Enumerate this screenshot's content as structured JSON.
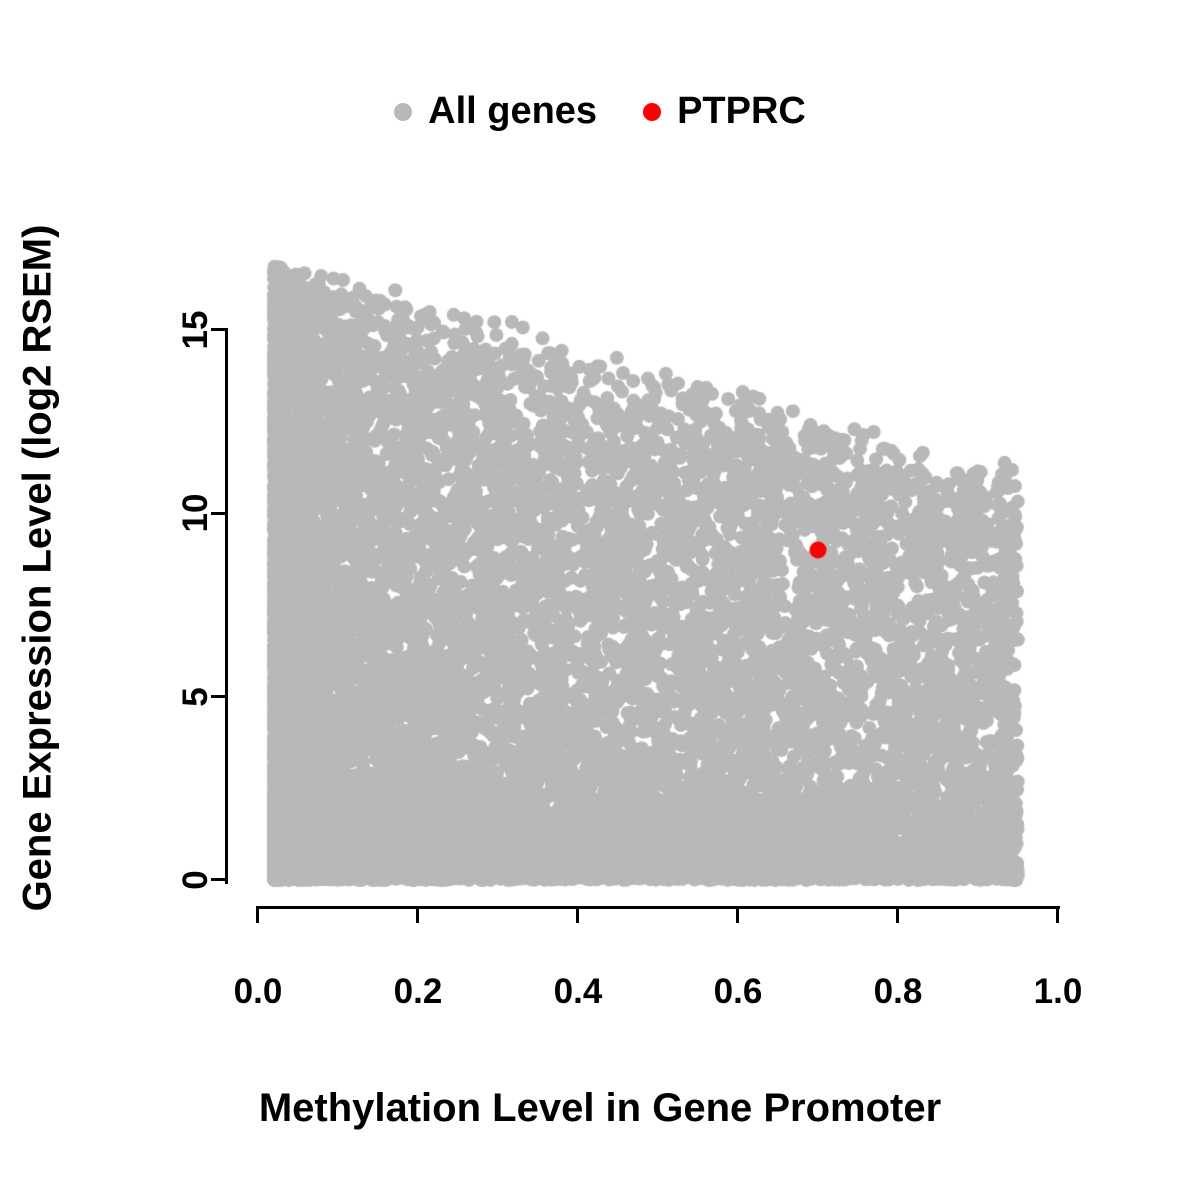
{
  "chart_data": {
    "type": "scatter",
    "title": "",
    "xlabel": "Methylation Level in Gene Promoter",
    "ylabel": "Gene Expression Level (log2 RSEM)",
    "xlim": [
      0.0,
      1.0
    ],
    "ylim": [
      0,
      17.5
    ],
    "grid": false,
    "legend_position": "top-center",
    "x_ticks": {
      "values": [
        0.0,
        0.2,
        0.4,
        0.6,
        0.8,
        1.0
      ],
      "labels": [
        "0.0",
        "0.2",
        "0.4",
        "0.6",
        "0.8",
        "1.0"
      ]
    },
    "y_ticks": {
      "values": [
        0,
        5,
        10,
        15
      ],
      "labels": [
        "0",
        "5",
        "10",
        "15"
      ]
    },
    "legend": [
      {
        "label": "All genes",
        "color": "#b8b8b8",
        "marker": "dot"
      },
      {
        "label": "PTPRC",
        "color": "#ff0000",
        "marker": "dot"
      }
    ],
    "series": [
      {
        "name": "All genes",
        "type": "point-cloud",
        "color": "#b8b8b8",
        "n_points": 14000,
        "seed": 42,
        "x_range": [
          0.02,
          0.95
        ],
        "upper_bound": {
          "y_at_x0": 17.2,
          "y_at_x1": 11.0
        },
        "shape_note": "dense wedge: heaviest density at low methylation spanning expression 0-17, thinning toward high methylation; heavy mass of points near expression 0 across the full methylation range"
      },
      {
        "name": "PTPRC",
        "type": "highlight-point",
        "color": "#ff0000",
        "points": [
          [
            0.7,
            9.0
          ]
        ]
      }
    ]
  },
  "colors": {
    "background": "#ffffff",
    "axis": "#000000",
    "text": "#000000"
  }
}
